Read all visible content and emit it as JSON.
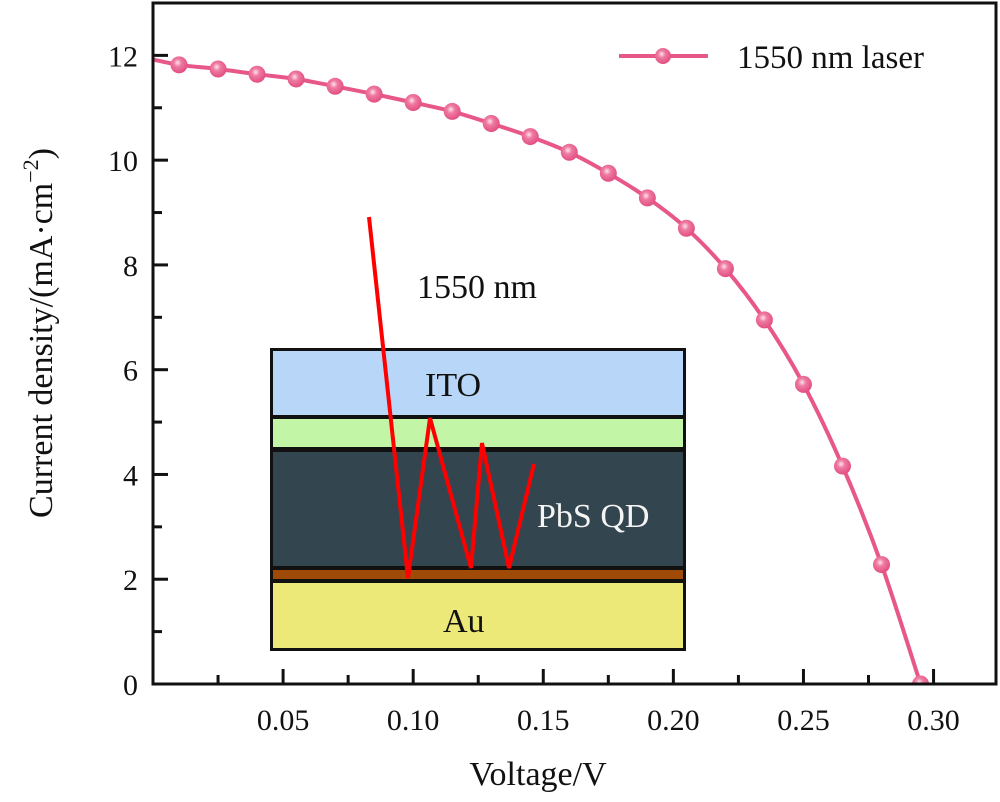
{
  "chart_data": {
    "type": "line",
    "title": "",
    "xlabel": "Voltage/V",
    "ylabel_main": "Current density/(mA·cm",
    "ylabel_sup": "−2",
    "ylabel_close": ")",
    "xlim": [
      0,
      0.324
    ],
    "ylim": [
      0,
      13
    ],
    "x_ticks": [
      0.05,
      0.1,
      0.15,
      0.2,
      0.25,
      0.3
    ],
    "x_tick_labels": [
      "0.05",
      "0.10",
      "0.15",
      "0.20",
      "0.25",
      "0.30"
    ],
    "x_minor_ticks": [
      0.025,
      0.075,
      0.125,
      0.175,
      0.225,
      0.275
    ],
    "y_ticks": [
      0,
      2,
      4,
      6,
      8,
      10,
      12
    ],
    "y_tick_labels": [
      "0",
      "2",
      "4",
      "6",
      "8",
      "10",
      "12"
    ],
    "y_minor_ticks": [
      1,
      3,
      5,
      7,
      9,
      11
    ],
    "grid": false,
    "legend_position": "top-right",
    "series": [
      {
        "name": "1550 nm laser",
        "color": "#e8578a",
        "line_start": {
          "x": 0.0,
          "y": 11.92
        },
        "x": [
          0.01,
          0.025,
          0.04,
          0.055,
          0.07,
          0.085,
          0.1,
          0.115,
          0.13,
          0.145,
          0.16,
          0.175,
          0.19,
          0.205,
          0.22,
          0.235,
          0.25,
          0.265,
          0.28,
          0.295
        ],
        "y": [
          11.82,
          11.74,
          11.64,
          11.55,
          11.41,
          11.26,
          11.1,
          10.93,
          10.7,
          10.45,
          10.15,
          9.75,
          9.28,
          8.7,
          7.93,
          6.95,
          5.72,
          4.16,
          2.28,
          0.0
        ]
      }
    ],
    "inset": {
      "beam_label": "1550 nm",
      "beam_color": "#ff0000",
      "layers": [
        {
          "name": "ITO",
          "label": "ITO",
          "color": "#b8d6f8",
          "label_color": "#111111"
        },
        {
          "name": "interlayer-top",
          "label": "",
          "color": "#c2f6a6",
          "label_color": "#111111"
        },
        {
          "name": "PbS QD",
          "label": "PbS QD",
          "color": "#33454e",
          "label_color": "#f4f4f4"
        },
        {
          "name": "interlayer-bottom",
          "label": "",
          "color": "#a04a08",
          "label_color": "#111111"
        },
        {
          "name": "Au",
          "label": "Au",
          "color": "#ece978",
          "label_color": "#111111"
        }
      ]
    }
  }
}
